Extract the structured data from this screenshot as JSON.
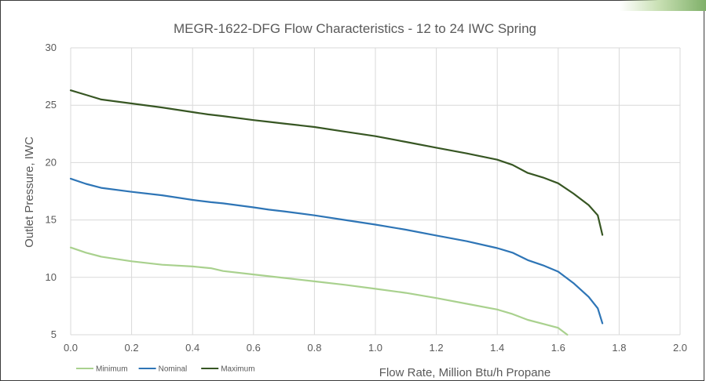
{
  "chart_data": {
    "type": "line",
    "title": "MEGR-1622-DFG Flow Characteristics - 12 to 24 IWC Spring",
    "xlabel": "Flow Rate, Million Btu/h Propane",
    "ylabel": "Outlet Pressure, IWC",
    "xlim": [
      0,
      2.0
    ],
    "ylim": [
      5,
      30
    ],
    "x_ticks": [
      "0.0",
      "0.2",
      "0.4",
      "0.6",
      "0.8",
      "1.0",
      "1.2",
      "1.4",
      "1.6",
      "1.8",
      "2.0"
    ],
    "y_ticks": [
      "5",
      "10",
      "15",
      "20",
      "25",
      "30"
    ],
    "grid": true,
    "legend_position": "bottom-left",
    "series": [
      {
        "name": "Minimum",
        "color": "#a9d18e",
        "points": [
          [
            0.0,
            12.6
          ],
          [
            0.05,
            12.15
          ],
          [
            0.1,
            11.8
          ],
          [
            0.2,
            11.4
          ],
          [
            0.3,
            11.1
          ],
          [
            0.4,
            10.95
          ],
          [
            0.46,
            10.8
          ],
          [
            0.5,
            10.55
          ],
          [
            0.6,
            10.25
          ],
          [
            0.7,
            9.95
          ],
          [
            0.8,
            9.65
          ],
          [
            0.9,
            9.35
          ],
          [
            1.0,
            9.0
          ],
          [
            1.1,
            8.65
          ],
          [
            1.2,
            8.2
          ],
          [
            1.3,
            7.7
          ],
          [
            1.4,
            7.2
          ],
          [
            1.45,
            6.8
          ],
          [
            1.5,
            6.3
          ],
          [
            1.55,
            5.95
          ],
          [
            1.6,
            5.6
          ],
          [
            1.63,
            5.0
          ]
        ]
      },
      {
        "name": "Nominal",
        "color": "#2e75b6",
        "points": [
          [
            0.0,
            18.6
          ],
          [
            0.05,
            18.15
          ],
          [
            0.1,
            17.8
          ],
          [
            0.2,
            17.45
          ],
          [
            0.3,
            17.15
          ],
          [
            0.4,
            16.75
          ],
          [
            0.46,
            16.55
          ],
          [
            0.5,
            16.45
          ],
          [
            0.6,
            16.1
          ],
          [
            0.65,
            15.9
          ],
          [
            0.7,
            15.75
          ],
          [
            0.8,
            15.4
          ],
          [
            0.9,
            15.0
          ],
          [
            1.0,
            14.6
          ],
          [
            1.1,
            14.15
          ],
          [
            1.2,
            13.65
          ],
          [
            1.3,
            13.15
          ],
          [
            1.4,
            12.55
          ],
          [
            1.45,
            12.15
          ],
          [
            1.5,
            11.5
          ],
          [
            1.55,
            11.05
          ],
          [
            1.6,
            10.5
          ],
          [
            1.65,
            9.5
          ],
          [
            1.7,
            8.3
          ],
          [
            1.73,
            7.3
          ],
          [
            1.745,
            6.0
          ]
        ]
      },
      {
        "name": "Maximum",
        "color": "#375623",
        "points": [
          [
            0.0,
            26.3
          ],
          [
            0.05,
            25.9
          ],
          [
            0.1,
            25.5
          ],
          [
            0.2,
            25.15
          ],
          [
            0.3,
            24.8
          ],
          [
            0.4,
            24.4
          ],
          [
            0.45,
            24.2
          ],
          [
            0.5,
            24.05
          ],
          [
            0.6,
            23.7
          ],
          [
            0.65,
            23.55
          ],
          [
            0.7,
            23.4
          ],
          [
            0.8,
            23.1
          ],
          [
            0.9,
            22.7
          ],
          [
            1.0,
            22.3
          ],
          [
            1.1,
            21.8
          ],
          [
            1.2,
            21.3
          ],
          [
            1.3,
            20.8
          ],
          [
            1.4,
            20.25
          ],
          [
            1.45,
            19.8
          ],
          [
            1.5,
            19.1
          ],
          [
            1.55,
            18.7
          ],
          [
            1.6,
            18.2
          ],
          [
            1.65,
            17.3
          ],
          [
            1.7,
            16.3
          ],
          [
            1.73,
            15.4
          ],
          [
            1.745,
            13.7
          ]
        ]
      }
    ]
  }
}
